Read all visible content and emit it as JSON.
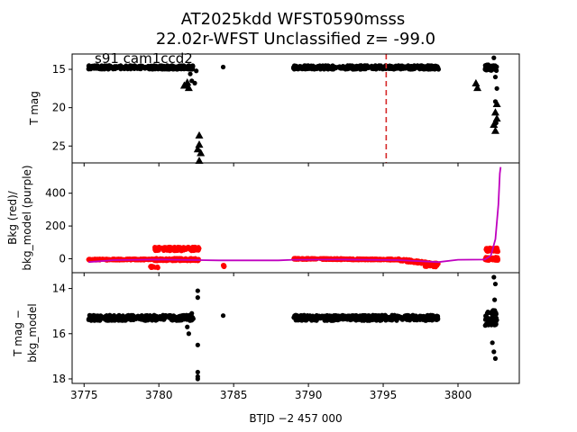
{
  "title_line1": "AT2025kdd  WFST0590msss",
  "title_line2": "22.02r-WFST Unclassified z= -99.0",
  "sector_label": "s91 cam1ccd2",
  "xlabel": "BTJD −2 457 000",
  "colors": {
    "data": "#000000",
    "bkg": "#ff0000",
    "bkg_model": "#bf00bf",
    "marker_line": "#d62728"
  },
  "chart_data": [
    {
      "type": "scatter",
      "panel": "top",
      "ylabel": "T mag",
      "xlim": [
        3774.2,
        3804.1
      ],
      "ylim": [
        27.2,
        13.0
      ],
      "yticks": [
        15,
        20,
        25
      ],
      "clusters": [
        {
          "x": [
            3775.3,
            3782.3
          ],
          "y": 14.75,
          "spread": 0.25
        },
        {
          "x": [
            3789.0,
            3798.7
          ],
          "y": 14.75,
          "spread": 0.25
        },
        {
          "x": [
            3801.8,
            3802.6
          ],
          "y": 14.8,
          "spread": 0.4
        }
      ],
      "points": [
        {
          "x": 3782.1,
          "y": 15.6
        },
        {
          "x": 3782.2,
          "y": 16.5
        },
        {
          "x": 3781.8,
          "y": 17.2
        },
        {
          "x": 3782.5,
          "y": 15.2
        },
        {
          "x": 3784.3,
          "y": 14.7
        },
        {
          "x": 3782.4,
          "y": 16.8
        },
        {
          "x": 3802.4,
          "y": 13.5
        },
        {
          "x": 3802.5,
          "y": 16.0
        },
        {
          "x": 3802.6,
          "y": 17.5
        },
        {
          "x": 3802.5,
          "y": 19.2
        },
        {
          "x": 3802.55,
          "y": 22.0
        }
      ],
      "triangles": [
        {
          "x": 3781.9,
          "y": 16.7
        },
        {
          "x": 3781.7,
          "y": 17.1
        },
        {
          "x": 3782.0,
          "y": 17.4
        },
        {
          "x": 3782.7,
          "y": 23.6
        },
        {
          "x": 3782.7,
          "y": 24.8
        },
        {
          "x": 3782.6,
          "y": 25.4
        },
        {
          "x": 3782.8,
          "y": 25.9
        },
        {
          "x": 3782.7,
          "y": 26.9
        },
        {
          "x": 3801.2,
          "y": 16.8
        },
        {
          "x": 3801.3,
          "y": 17.4
        },
        {
          "x": 3802.6,
          "y": 19.5
        },
        {
          "x": 3802.5,
          "y": 20.6
        },
        {
          "x": 3802.6,
          "y": 21.4
        },
        {
          "x": 3802.4,
          "y": 22.2
        },
        {
          "x": 3802.5,
          "y": 23.0
        }
      ],
      "vline_x": 3795.2
    },
    {
      "type": "scatter",
      "panel": "middle",
      "ylabel_line1": "Bkg (red)/",
      "ylabel_line2": "bkg_model (purple)",
      "xlim": [
        3774.2,
        3804.1
      ],
      "ylim": [
        -85,
        585
      ],
      "yticks": [
        0,
        200,
        400
      ],
      "bkg_segments": [
        {
          "x": [
            3775.3,
            3779.6
          ],
          "y": [
            -5,
            -4
          ],
          "spread": 4
        },
        {
          "x": [
            3779.6,
            3782.7
          ],
          "y": [
            -5,
            -5
          ],
          "spread": 8
        },
        {
          "x": [
            3789.0,
            3796.0
          ],
          "y": [
            0,
            -5
          ],
          "spread": 4
        },
        {
          "x": [
            3796.0,
            3798.7
          ],
          "y": [
            -5,
            -35
          ],
          "spread": 8
        },
        {
          "x": [
            3801.8,
            3802.7
          ],
          "y": [
            0,
            0
          ],
          "spread": 10
        }
      ],
      "bkg_high_bands": [
        {
          "x": [
            3779.7,
            3782.7
          ],
          "y": 60,
          "spread": 12
        },
        {
          "x": [
            3801.8,
            3802.7
          ],
          "y": 55,
          "spread": 12
        }
      ],
      "bkg_dips": [
        {
          "x": [
            3779.4,
            3780.2
          ],
          "y": -50
        },
        {
          "x": [
            3797.8,
            3798.7
          ],
          "y": -45
        },
        {
          "x": [
            3784.3,
            3784.4
          ],
          "y": -45
        }
      ],
      "model_line": {
        "x": [
          3775.3,
          3777.0,
          3780.0,
          3782.7,
          3784.0,
          3788.0,
          3789.0,
          3792.0,
          3796.0,
          3798.7,
          3800.0,
          3801.8,
          3802.2,
          3802.5,
          3802.7,
          3802.8,
          3802.85
        ],
        "y": [
          -20,
          -8,
          -5,
          -8,
          -10,
          -10,
          -6,
          -5,
          -8,
          -20,
          -6,
          -5,
          20,
          120,
          330,
          520,
          560
        ]
      }
    },
    {
      "type": "scatter",
      "panel": "bottom",
      "ylabel_line1": "T mag −",
      "ylabel_line2": "bkg_model",
      "xlim": [
        3774.2,
        3804.1
      ],
      "ylim": [
        18.2,
        13.3
      ],
      "yticks": [
        14,
        16,
        18
      ],
      "clusters": [
        {
          "x": [
            3775.3,
            3782.3
          ],
          "y": 15.3,
          "spread": 0.12
        },
        {
          "x": [
            3789.0,
            3798.7
          ],
          "y": 15.3,
          "spread": 0.12
        },
        {
          "x": [
            3801.8,
            3802.6
          ],
          "y": 15.3,
          "spread": 0.35
        }
      ],
      "points": [
        {
          "x": 3781.9,
          "y": 15.7
        },
        {
          "x": 3782.0,
          "y": 16.0
        },
        {
          "x": 3782.2,
          "y": 15.1
        },
        {
          "x": 3782.6,
          "y": 14.1
        },
        {
          "x": 3782.6,
          "y": 14.4
        },
        {
          "x": 3782.6,
          "y": 16.5
        },
        {
          "x": 3782.6,
          "y": 17.7
        },
        {
          "x": 3782.6,
          "y": 17.9
        },
        {
          "x": 3782.6,
          "y": 18.0
        },
        {
          "x": 3784.3,
          "y": 15.2
        },
        {
          "x": 3802.4,
          "y": 13.5
        },
        {
          "x": 3802.5,
          "y": 13.8
        },
        {
          "x": 3802.45,
          "y": 14.5
        },
        {
          "x": 3802.3,
          "y": 16.4
        },
        {
          "x": 3802.4,
          "y": 16.8
        },
        {
          "x": 3802.5,
          "y": 17.1
        }
      ],
      "xticks": [
        3775,
        3780,
        3785,
        3790,
        3795,
        3800
      ]
    }
  ]
}
